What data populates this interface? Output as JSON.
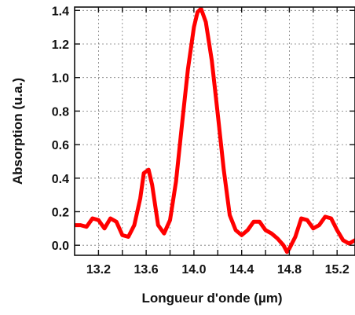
{
  "chart_data": {
    "type": "line",
    "title": "",
    "xlabel": "Longueur d'onde (µm)",
    "ylabel": "Absorption (u.a.)",
    "xlim": [
      13.0,
      15.35
    ],
    "ylim": [
      -0.06,
      1.42
    ],
    "xticks": [
      13.2,
      13.4,
      13.6,
      13.8,
      14.0,
      14.2,
      14.4,
      14.6,
      14.8,
      15.0,
      15.2
    ],
    "xtick_labels": [
      "13.2",
      "13.6",
      "14.0",
      "14.4",
      "14.8",
      "15.2"
    ],
    "yticks": [
      0.0,
      0.2,
      0.4,
      0.6,
      0.8,
      1.0,
      1.2,
      1.4
    ],
    "ytick_labels": [
      "0.0",
      "0.2",
      "0.4",
      "0.6",
      "0.8",
      "1.0",
      "1.2",
      "1.4"
    ],
    "grid": true,
    "series": [
      {
        "color": "#ff0000",
        "x": [
          13.0,
          13.05,
          13.1,
          13.15,
          13.2,
          13.25,
          13.3,
          13.35,
          13.4,
          13.45,
          13.5,
          13.55,
          13.58,
          13.62,
          13.65,
          13.7,
          13.75,
          13.8,
          13.85,
          13.9,
          13.95,
          14.0,
          14.03,
          14.06,
          14.1,
          14.15,
          14.2,
          14.25,
          14.3,
          14.35,
          14.4,
          14.45,
          14.5,
          14.55,
          14.6,
          14.65,
          14.7,
          14.75,
          14.78,
          14.8,
          14.85,
          14.9,
          14.95,
          15.0,
          15.05,
          15.1,
          15.15,
          15.2,
          15.25,
          15.3,
          15.35
        ],
        "y": [
          0.12,
          0.12,
          0.11,
          0.16,
          0.15,
          0.1,
          0.16,
          0.14,
          0.06,
          0.05,
          0.12,
          0.28,
          0.43,
          0.45,
          0.36,
          0.12,
          0.07,
          0.15,
          0.38,
          0.72,
          1.05,
          1.3,
          1.39,
          1.41,
          1.33,
          1.1,
          0.78,
          0.45,
          0.18,
          0.09,
          0.06,
          0.09,
          0.14,
          0.14,
          0.09,
          0.07,
          0.04,
          0.0,
          -0.04,
          -0.02,
          0.05,
          0.16,
          0.15,
          0.1,
          0.12,
          0.17,
          0.16,
          0.09,
          0.03,
          0.01,
          0.03
        ]
      }
    ]
  }
}
